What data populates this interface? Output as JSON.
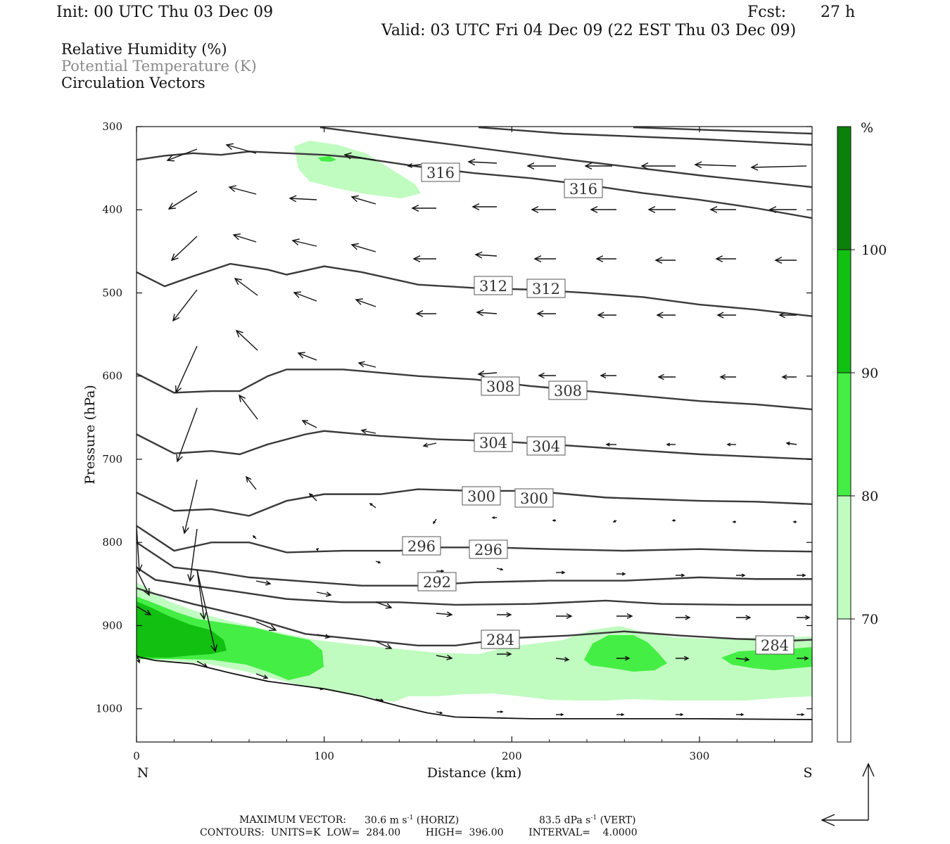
{
  "header": {
    "init": "Init: 00 UTC Thu 03 Dec 09",
    "fcst_label": "Fcst:",
    "fcst_value": "27 h",
    "valid": "Valid: 03 UTC Fri 04 Dec 09 (22 EST Thu 03 Dec 09)"
  },
  "legend": {
    "line1": "Relative Humidity (%)",
    "line2": "Potential Temperature (K)",
    "line3": "Circulation Vectors"
  },
  "footer": {
    "max_vector_label": "MAXIMUM VECTOR:",
    "max_horiz": "30.6 m s",
    "horiz_tag": "(HORIZ)",
    "max_vert": "83.5 dPa s",
    "vert_tag": "(VERT)",
    "exp": "-1",
    "contours": "CONTOURS:  UNITS=K  LOW=  284.00        HIGH=  396.00        INTERVAL=    4.0000"
  },
  "chart_data": {
    "type": "cross-section",
    "xlabel": "Distance (km)",
    "ylabel": "Pressure (hPa)",
    "xlim": [
      0,
      360
    ],
    "ylim": [
      1040,
      300
    ],
    "x_ticks": [
      "0",
      "100",
      "200",
      "300"
    ],
    "y_ticks": [
      "300",
      "400",
      "500",
      "600",
      "700",
      "800",
      "900",
      "1000"
    ],
    "x_end_labels": {
      "left": "N",
      "right": "S"
    },
    "colorbar": {
      "unit": "%",
      "levels": [
        "70",
        "80",
        "90",
        "100"
      ],
      "colors": [
        "#ffffff",
        "#c0fcc0",
        "#44ee44",
        "#11c011",
        "#0b800b"
      ]
    },
    "theta_contours": [
      {
        "value": 316,
        "labels": [
          "316",
          "316"
        ],
        "points": [
          [
            0,
            340
          ],
          [
            15,
            335
          ],
          [
            30,
            332
          ],
          [
            45,
            334
          ],
          [
            60,
            330
          ],
          [
            80,
            332
          ],
          [
            100,
            334
          ],
          [
            120,
            338
          ],
          [
            150,
            348
          ],
          [
            180,
            356
          ],
          [
            210,
            362
          ],
          [
            240,
            370
          ],
          [
            270,
            380
          ],
          [
            300,
            388
          ],
          [
            330,
            398
          ],
          [
            360,
            410
          ]
        ]
      },
      {
        "value": 312,
        "labels": [
          "312",
          "312"
        ],
        "points": [
          [
            0,
            475
          ],
          [
            15,
            492
          ],
          [
            30,
            480
          ],
          [
            50,
            465
          ],
          [
            70,
            472
          ],
          [
            80,
            478
          ],
          [
            100,
            468
          ],
          [
            120,
            475
          ],
          [
            150,
            490
          ],
          [
            180,
            494
          ],
          [
            210,
            496
          ],
          [
            240,
            500
          ],
          [
            270,
            505
          ],
          [
            300,
            514
          ],
          [
            330,
            520
          ],
          [
            360,
            528
          ]
        ]
      },
      {
        "value": 308,
        "labels": [
          "308",
          "308"
        ],
        "points": [
          [
            0,
            597
          ],
          [
            20,
            620
          ],
          [
            40,
            618
          ],
          [
            55,
            618
          ],
          [
            70,
            600
          ],
          [
            80,
            592
          ],
          [
            110,
            592
          ],
          [
            150,
            600
          ],
          [
            180,
            604
          ],
          [
            210,
            612
          ],
          [
            240,
            618
          ],
          [
            270,
            624
          ],
          [
            300,
            630
          ],
          [
            330,
            634
          ],
          [
            360,
            640
          ]
        ]
      },
      {
        "value": 304,
        "labels": [
          "304",
          "304"
        ],
        "points": [
          [
            0,
            670
          ],
          [
            20,
            693
          ],
          [
            40,
            690
          ],
          [
            55,
            694
          ],
          [
            70,
            682
          ],
          [
            90,
            670
          ],
          [
            100,
            666
          ],
          [
            130,
            672
          ],
          [
            160,
            676
          ],
          [
            190,
            678
          ],
          [
            220,
            682
          ],
          [
            260,
            688
          ],
          [
            300,
            694
          ],
          [
            330,
            697
          ],
          [
            360,
            700
          ]
        ]
      },
      {
        "value": 300,
        "labels": [
          "300",
          "300"
        ],
        "points": [
          [
            0,
            740
          ],
          [
            20,
            762
          ],
          [
            40,
            760
          ],
          [
            60,
            768
          ],
          [
            80,
            750
          ],
          [
            100,
            742
          ],
          [
            130,
            742
          ],
          [
            150,
            736
          ],
          [
            180,
            738
          ],
          [
            210,
            738
          ],
          [
            250,
            746
          ],
          [
            300,
            750
          ],
          [
            330,
            751
          ],
          [
            360,
            754
          ]
        ]
      },
      {
        "value": 296,
        "labels": [
          "296",
          "296"
        ],
        "points": [
          [
            0,
            780
          ],
          [
            20,
            810
          ],
          [
            40,
            800
          ],
          [
            60,
            800
          ],
          [
            80,
            812
          ],
          [
            110,
            810
          ],
          [
            140,
            810
          ],
          [
            160,
            806
          ],
          [
            190,
            806
          ],
          [
            220,
            808
          ],
          [
            260,
            810
          ],
          [
            300,
            808
          ],
          [
            330,
            810
          ],
          [
            360,
            811
          ]
        ]
      },
      {
        "value": 292,
        "labels": [
          "292"
        ],
        "points": [
          [
            0,
            800
          ],
          [
            20,
            830
          ],
          [
            40,
            835
          ],
          [
            60,
            842
          ],
          [
            90,
            847
          ],
          [
            120,
            852
          ],
          [
            150,
            852
          ],
          [
            180,
            848
          ],
          [
            220,
            846
          ],
          [
            260,
            846
          ],
          [
            300,
            842
          ],
          [
            330,
            844
          ],
          [
            360,
            844
          ]
        ]
      },
      {
        "value": 288,
        "labels": [],
        "points": [
          [
            0,
            830
          ],
          [
            10,
            845
          ],
          [
            30,
            852
          ],
          [
            50,
            858
          ],
          [
            80,
            868
          ],
          [
            110,
            872
          ],
          [
            140,
            872
          ],
          [
            170,
            875
          ],
          [
            210,
            874
          ],
          [
            250,
            870
          ],
          [
            280,
            874
          ],
          [
            320,
            875
          ],
          [
            360,
            875
          ]
        ]
      },
      {
        "value": 284,
        "labels": [
          "284",
          "284"
        ],
        "points": [
          [
            0,
            855
          ],
          [
            10,
            862
          ],
          [
            30,
            874
          ],
          [
            60,
            890
          ],
          [
            90,
            910
          ],
          [
            120,
            917
          ],
          [
            150,
            924
          ],
          [
            170,
            924
          ],
          [
            200,
            915
          ],
          [
            230,
            912
          ],
          [
            260,
            907
          ],
          [
            290,
            912
          ],
          [
            320,
            916
          ],
          [
            350,
            918
          ],
          [
            360,
            917
          ]
        ]
      }
    ],
    "terrain": [
      [
        0,
        937
      ],
      [
        10,
        942
      ],
      [
        30,
        946
      ],
      [
        50,
        957
      ],
      [
        70,
        967
      ],
      [
        100,
        976
      ],
      [
        120,
        985
      ],
      [
        140,
        997
      ],
      [
        155,
        1005
      ],
      [
        170,
        1010
      ],
      [
        190,
        1011
      ],
      [
        210,
        1012
      ],
      [
        250,
        1012
      ],
      [
        300,
        1012
      ],
      [
        360,
        1013
      ]
    ]
  }
}
